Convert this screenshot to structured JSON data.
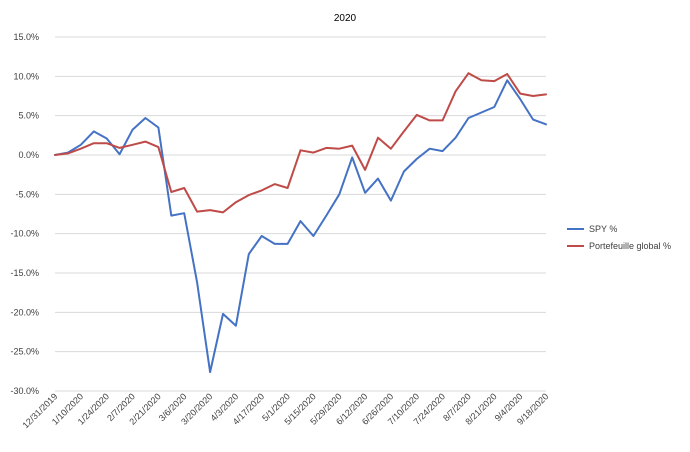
{
  "chart_data": {
    "type": "line",
    "title": "2020",
    "xlabel": "",
    "ylabel": "",
    "ylim": [
      -0.3,
      0.15
    ],
    "y_ticks": [
      "15.0%",
      "10.0%",
      "5.0%",
      "0.0%",
      "-5.0%",
      "-10.0%",
      "-15.0%",
      "-20.0%",
      "-25.0%",
      "-30.0%"
    ],
    "x_tick_labels": [
      "12/31/2019",
      "1/10/2020",
      "1/24/2020",
      "2/7/2020",
      "2/21/2020",
      "3/6/2020",
      "3/20/2020",
      "4/3/2020",
      "4/17/2020",
      "5/1/2020",
      "5/15/2020",
      "5/29/2020",
      "6/12/2020",
      "6/26/2020",
      "7/10/2020",
      "7/24/2020",
      "8/7/2020",
      "8/21/2020",
      "9/4/2020",
      "9/18/2020"
    ],
    "grid": true,
    "legend_position": "right",
    "series": [
      {
        "name": "SPY %",
        "color": "#4472C4",
        "values": [
          0.0,
          0.003,
          0.013,
          0.03,
          0.021,
          0.001,
          0.032,
          0.047,
          0.035,
          -0.077,
          -0.074,
          -0.162,
          -0.276,
          -0.202,
          -0.217,
          -0.126,
          -0.103,
          -0.113,
          -0.113,
          -0.084,
          -0.103,
          -0.077,
          -0.05,
          -0.003,
          -0.048,
          -0.03,
          -0.058,
          -0.021,
          -0.005,
          0.008,
          0.005,
          0.022,
          0.047,
          0.054,
          0.061,
          0.095,
          0.071,
          0.045,
          0.039
        ]
      },
      {
        "name": "Portefeuille global %",
        "color": "#BE4B48",
        "values": [
          0.0,
          0.002,
          0.008,
          0.015,
          0.015,
          0.009,
          0.013,
          0.017,
          0.01,
          -0.047,
          -0.042,
          -0.072,
          -0.07,
          -0.073,
          -0.06,
          -0.051,
          -0.045,
          -0.037,
          -0.042,
          0.006,
          0.003,
          0.009,
          0.008,
          0.012,
          -0.019,
          0.022,
          0.008,
          0.03,
          0.051,
          0.044,
          0.044,
          0.081,
          0.104,
          0.095,
          0.094,
          0.103,
          0.078,
          0.075,
          0.077
        ]
      }
    ]
  }
}
